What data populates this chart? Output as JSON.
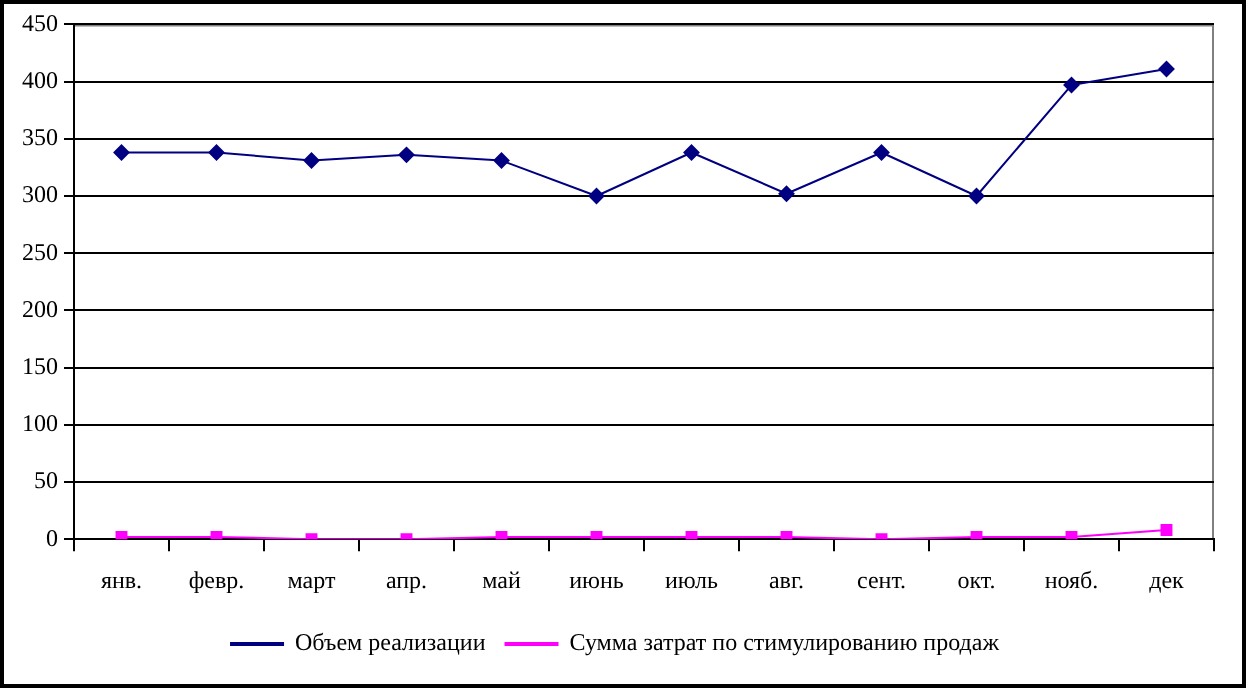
{
  "chart_data": {
    "type": "line",
    "categories": [
      "янв.",
      "февр.",
      "март",
      "апр.",
      "май",
      "июнь",
      "июль",
      "авг.",
      "сент.",
      "окт.",
      "нояб.",
      "дек"
    ],
    "series": [
      {
        "name": "Объем реализации",
        "color": "#000080",
        "marker": "diamond",
        "values": [
          338,
          338,
          331,
          336,
          331,
          300,
          338,
          302,
          338,
          300,
          397,
          411
        ]
      },
      {
        "name": "Сумма затрат по стимулированию продаж",
        "color": "#ff00ff",
        "marker": "square",
        "values": [
          2,
          2,
          0,
          0,
          2,
          2,
          2,
          2,
          0,
          2,
          2,
          8
        ]
      }
    ],
    "ylim": [
      0,
      450
    ],
    "yticks": [
      0,
      50,
      100,
      150,
      200,
      250,
      300,
      350,
      400,
      450
    ],
    "grid": "y",
    "legend": "bottom"
  }
}
